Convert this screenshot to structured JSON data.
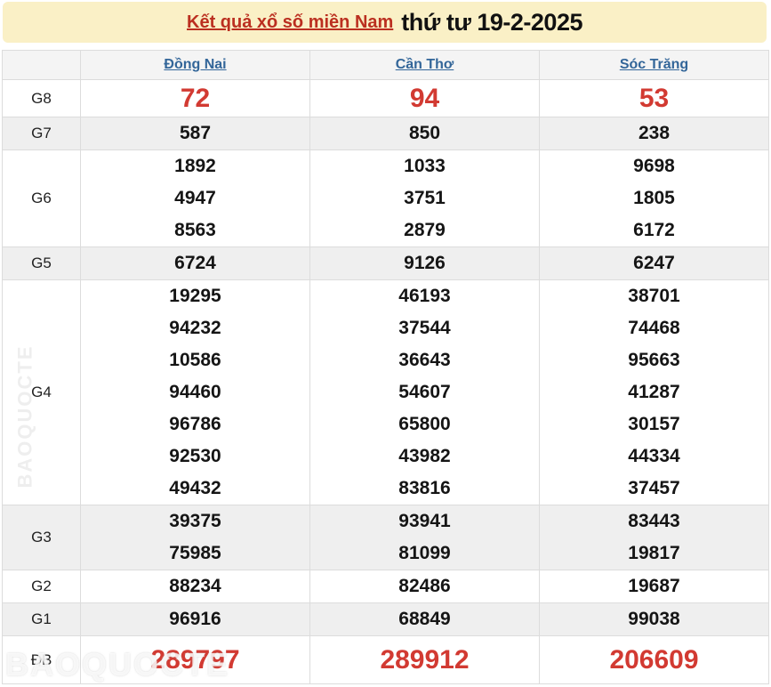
{
  "header": {
    "title_link": "Kết quả xổ số miền Nam",
    "title_date": "thứ tư 19-2-2025"
  },
  "table": {
    "provinces": [
      "Đồng Nai",
      "Cần Thơ",
      "Sóc Trăng"
    ],
    "rows": [
      {
        "label": "G8",
        "style": "g8",
        "values": [
          [
            "72"
          ],
          [
            "94"
          ],
          [
            "53"
          ]
        ]
      },
      {
        "label": "G7",
        "style": "",
        "values": [
          [
            "587"
          ],
          [
            "850"
          ],
          [
            "238"
          ]
        ]
      },
      {
        "label": "G6",
        "style": "",
        "values": [
          [
            "1892",
            "4947",
            "8563"
          ],
          [
            "1033",
            "3751",
            "2879"
          ],
          [
            "9698",
            "1805",
            "6172"
          ]
        ]
      },
      {
        "label": "G5",
        "style": "",
        "values": [
          [
            "6724"
          ],
          [
            "9126"
          ],
          [
            "6247"
          ]
        ]
      },
      {
        "label": "G4",
        "style": "",
        "values": [
          [
            "19295",
            "94232",
            "10586",
            "94460",
            "96786",
            "92530",
            "49432"
          ],
          [
            "46193",
            "37544",
            "36643",
            "54607",
            "65800",
            "43982",
            "83816"
          ],
          [
            "38701",
            "74468",
            "95663",
            "41287",
            "30157",
            "44334",
            "37457"
          ]
        ]
      },
      {
        "label": "G3",
        "style": "",
        "values": [
          [
            "39375",
            "75985"
          ],
          [
            "93941",
            "81099"
          ],
          [
            "83443",
            "19817"
          ]
        ]
      },
      {
        "label": "G2",
        "style": "",
        "values": [
          [
            "88234"
          ],
          [
            "82486"
          ],
          [
            "19687"
          ]
        ]
      },
      {
        "label": "G1",
        "style": "",
        "values": [
          [
            "96916"
          ],
          [
            "68849"
          ],
          [
            "99038"
          ]
        ]
      },
      {
        "label": "ĐB",
        "style": "db",
        "values": [
          [
            "289797"
          ],
          [
            "289912"
          ],
          [
            "206609"
          ]
        ]
      }
    ]
  },
  "watermark": {
    "bottom_text": "BAOQUOCTE",
    "left_text": "BAOQUOCTE"
  },
  "colors": {
    "title_bar_bg": "#faf0c6",
    "title_link_red": "#bb2f20",
    "province_link_blue": "#336699",
    "highlight_number_red": "#d23a32",
    "stripe_gray": "#efefef",
    "border_gray": "#dcdcdc"
  }
}
